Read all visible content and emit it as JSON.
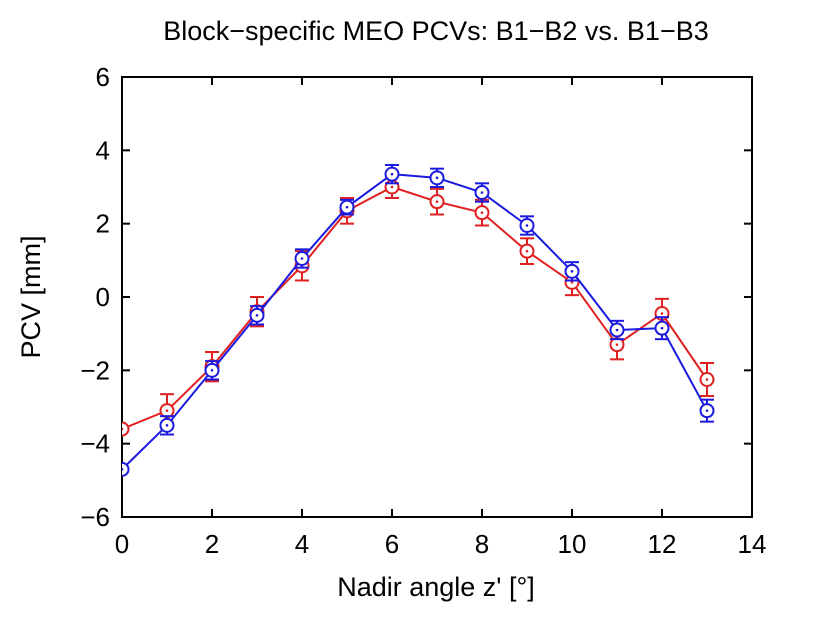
{
  "chart_data": {
    "type": "line",
    "title": "Block−specific MEO PCVs: B1−B2 vs. B1−B3",
    "xlabel": "Nadir angle z' [°]",
    "ylabel": "PCV [mm]",
    "x": [
      0,
      1,
      2,
      3,
      4,
      5,
      6,
      7,
      8,
      9,
      10,
      11,
      12,
      13
    ],
    "series": [
      {
        "color": "#e02020",
        "values": [
          -3.6,
          -3.1,
          -1.9,
          -0.4,
          0.85,
          2.35,
          3.0,
          2.6,
          2.3,
          1.25,
          0.4,
          -1.3,
          -0.45,
          -2.25
        ],
        "errors": [
          null,
          0.45,
          0.4,
          0.4,
          0.4,
          0.35,
          0.3,
          0.35,
          0.35,
          0.35,
          0.35,
          0.4,
          0.4,
          0.45
        ]
      },
      {
        "color": "#1a1ae0",
        "values": [
          -4.7,
          -3.5,
          -2.0,
          -0.5,
          1.05,
          2.45,
          3.35,
          3.25,
          2.85,
          1.95,
          0.7,
          -0.9,
          -0.85,
          -3.1
        ],
        "errors": [
          null,
          0.25,
          0.25,
          0.25,
          0.25,
          0.2,
          0.25,
          0.25,
          0.25,
          0.25,
          0.25,
          0.25,
          0.3,
          0.3
        ]
      }
    ],
    "xlim": [
      0,
      14
    ],
    "xticks": [
      0,
      2,
      4,
      6,
      8,
      10,
      12,
      14
    ],
    "ylim": [
      -6,
      6
    ],
    "yticks": [
      {
        "value": -6,
        "label": "−6"
      },
      {
        "value": -4,
        "label": "−4"
      },
      {
        "value": -2,
        "label": "−2"
      },
      0,
      2,
      4,
      6
    ]
  }
}
